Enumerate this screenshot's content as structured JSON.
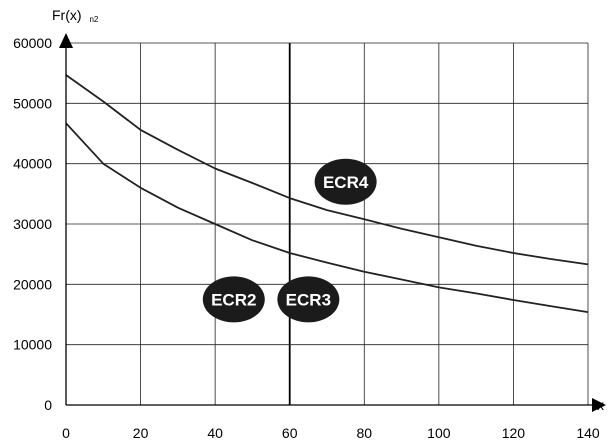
{
  "chart_data": {
    "type": "line",
    "ylabel": "Fr(x)",
    "ylabel_subscript": "n2",
    "xlabel": "x",
    "xlim": [
      0,
      140
    ],
    "ylim": [
      0,
      60000
    ],
    "x_ticks": [
      0,
      20,
      40,
      60,
      80,
      100,
      120,
      140
    ],
    "y_ticks": [
      0,
      10000,
      20000,
      30000,
      40000,
      50000,
      60000
    ],
    "grid": true,
    "x": [
      0,
      10,
      20,
      30,
      40,
      50,
      60,
      70,
      80,
      90,
      100,
      110,
      120,
      130,
      140
    ],
    "series": [
      {
        "values": [
          54700,
          50300,
          45600,
          42300,
          39200,
          36800,
          34300,
          32300,
          30800,
          29200,
          27800,
          26400,
          25200,
          24200,
          23300
        ],
        "color": "#222222"
      },
      {
        "values": [
          46700,
          40000,
          36000,
          32700,
          30000,
          27300,
          25200,
          23600,
          22100,
          20800,
          19500,
          18500,
          17400,
          16400,
          15400
        ],
        "color": "#222222"
      }
    ],
    "annotations": [
      {
        "text": "ECR4",
        "x": 75,
        "y": 37000
      },
      {
        "text": "ECR2",
        "x": 45,
        "y": 17500
      },
      {
        "text": "ECR3",
        "x": 65,
        "y": 17500
      }
    ],
    "highlight_x": 60
  }
}
